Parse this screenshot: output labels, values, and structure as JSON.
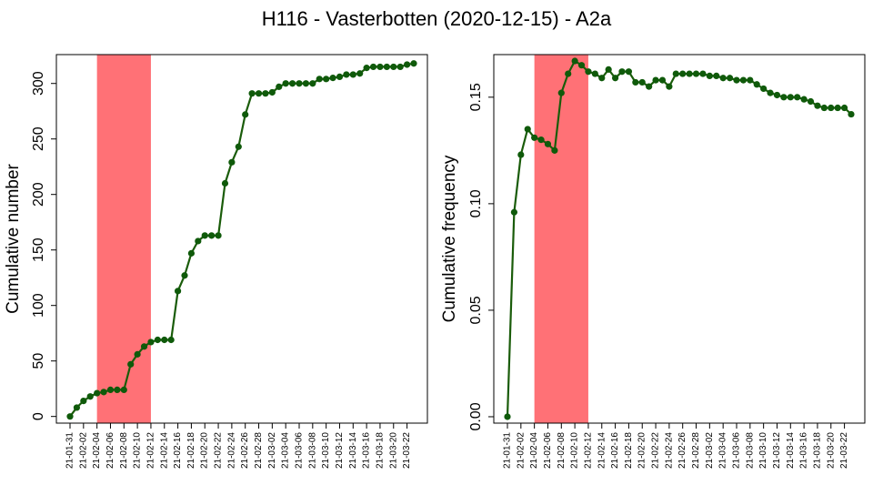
{
  "title": "H116 - Vasterbotten (2020-12-15) - A2a",
  "colors": {
    "line": "#1a5c0a",
    "point": "#0f5a0a",
    "shade": "#ff7176",
    "frame": "#000000"
  },
  "dates": [
    "21-01-31",
    "21-02-01",
    "21-02-02",
    "21-02-03",
    "21-02-04",
    "21-02-05",
    "21-02-06",
    "21-02-07",
    "21-02-08",
    "21-02-09",
    "21-02-10",
    "21-02-11",
    "21-02-12",
    "21-02-13",
    "21-02-14",
    "21-02-15",
    "21-02-16",
    "21-02-17",
    "21-02-18",
    "21-02-19",
    "21-02-20",
    "21-02-21",
    "21-02-22",
    "21-02-23",
    "21-02-24",
    "21-02-25",
    "21-02-26",
    "21-02-27",
    "21-02-28",
    "21-03-01",
    "21-03-02",
    "21-03-03",
    "21-03-04",
    "21-03-05",
    "21-03-06",
    "21-03-07",
    "21-03-08",
    "21-03-09",
    "21-03-10",
    "21-03-11",
    "21-03-12",
    "21-03-13",
    "21-03-14",
    "21-03-15",
    "21-03-16",
    "21-03-17",
    "21-03-18",
    "21-03-19",
    "21-03-20",
    "21-03-21",
    "21-03-22",
    "21-03-23"
  ],
  "x_tick_labels": [
    "21-01-31",
    "21-02-02",
    "21-02-04",
    "21-02-06",
    "21-02-08",
    "21-02-10",
    "21-02-12",
    "21-02-14",
    "21-02-16",
    "21-02-18",
    "21-02-20",
    "21-02-22",
    "21-02-24",
    "21-02-26",
    "21-02-28",
    "21-03-02",
    "21-03-04",
    "21-03-06",
    "21-03-08",
    "21-03-10",
    "21-03-12",
    "21-03-14",
    "21-03-16",
    "21-03-18",
    "21-03-20",
    "21-03-22"
  ],
  "chart_data": [
    {
      "type": "line",
      "ylabel": "Cumulative number",
      "ylim": [
        -6,
        326
      ],
      "y_ticks": [
        0,
        50,
        100,
        150,
        200,
        250,
        300
      ],
      "shaded_x_range": [
        "21-02-04",
        "21-02-12"
      ],
      "x": "dates",
      "values": [
        0,
        8,
        14,
        18,
        21,
        22,
        24,
        24,
        24,
        47,
        56,
        63,
        67,
        69,
        69,
        69,
        113,
        127,
        147,
        158,
        163,
        163,
        163,
        210,
        229,
        243,
        272,
        291,
        291,
        291,
        292,
        297,
        300,
        300,
        300,
        300,
        300,
        304,
        304,
        305,
        306,
        308,
        308,
        309,
        314,
        315,
        315,
        315,
        315,
        315,
        317,
        318
      ]
    },
    {
      "type": "line",
      "ylabel": "Cumulative frequency",
      "ylim": [
        -0.003,
        0.17
      ],
      "y_ticks": [
        0.0,
        0.05,
        0.1,
        0.15
      ],
      "y_tick_labels": [
        "0.00",
        "0.05",
        "0.10",
        "0.15"
      ],
      "shaded_x_range": [
        "21-02-04",
        "21-02-12"
      ],
      "x": "dates",
      "values": [
        0.0,
        0.096,
        0.123,
        0.135,
        0.131,
        0.13,
        0.128,
        0.125,
        0.152,
        0.161,
        0.167,
        0.165,
        0.162,
        0.161,
        0.159,
        0.163,
        0.159,
        0.162,
        0.162,
        0.157,
        0.157,
        0.155,
        0.158,
        0.158,
        0.155,
        0.161,
        0.161,
        0.161,
        0.161,
        0.161,
        0.16,
        0.16,
        0.159,
        0.159,
        0.158,
        0.158,
        0.158,
        0.156,
        0.154,
        0.152,
        0.151,
        0.15,
        0.15,
        0.15,
        0.149,
        0.148,
        0.146,
        0.145,
        0.145,
        0.145,
        0.145,
        0.142
      ]
    }
  ]
}
